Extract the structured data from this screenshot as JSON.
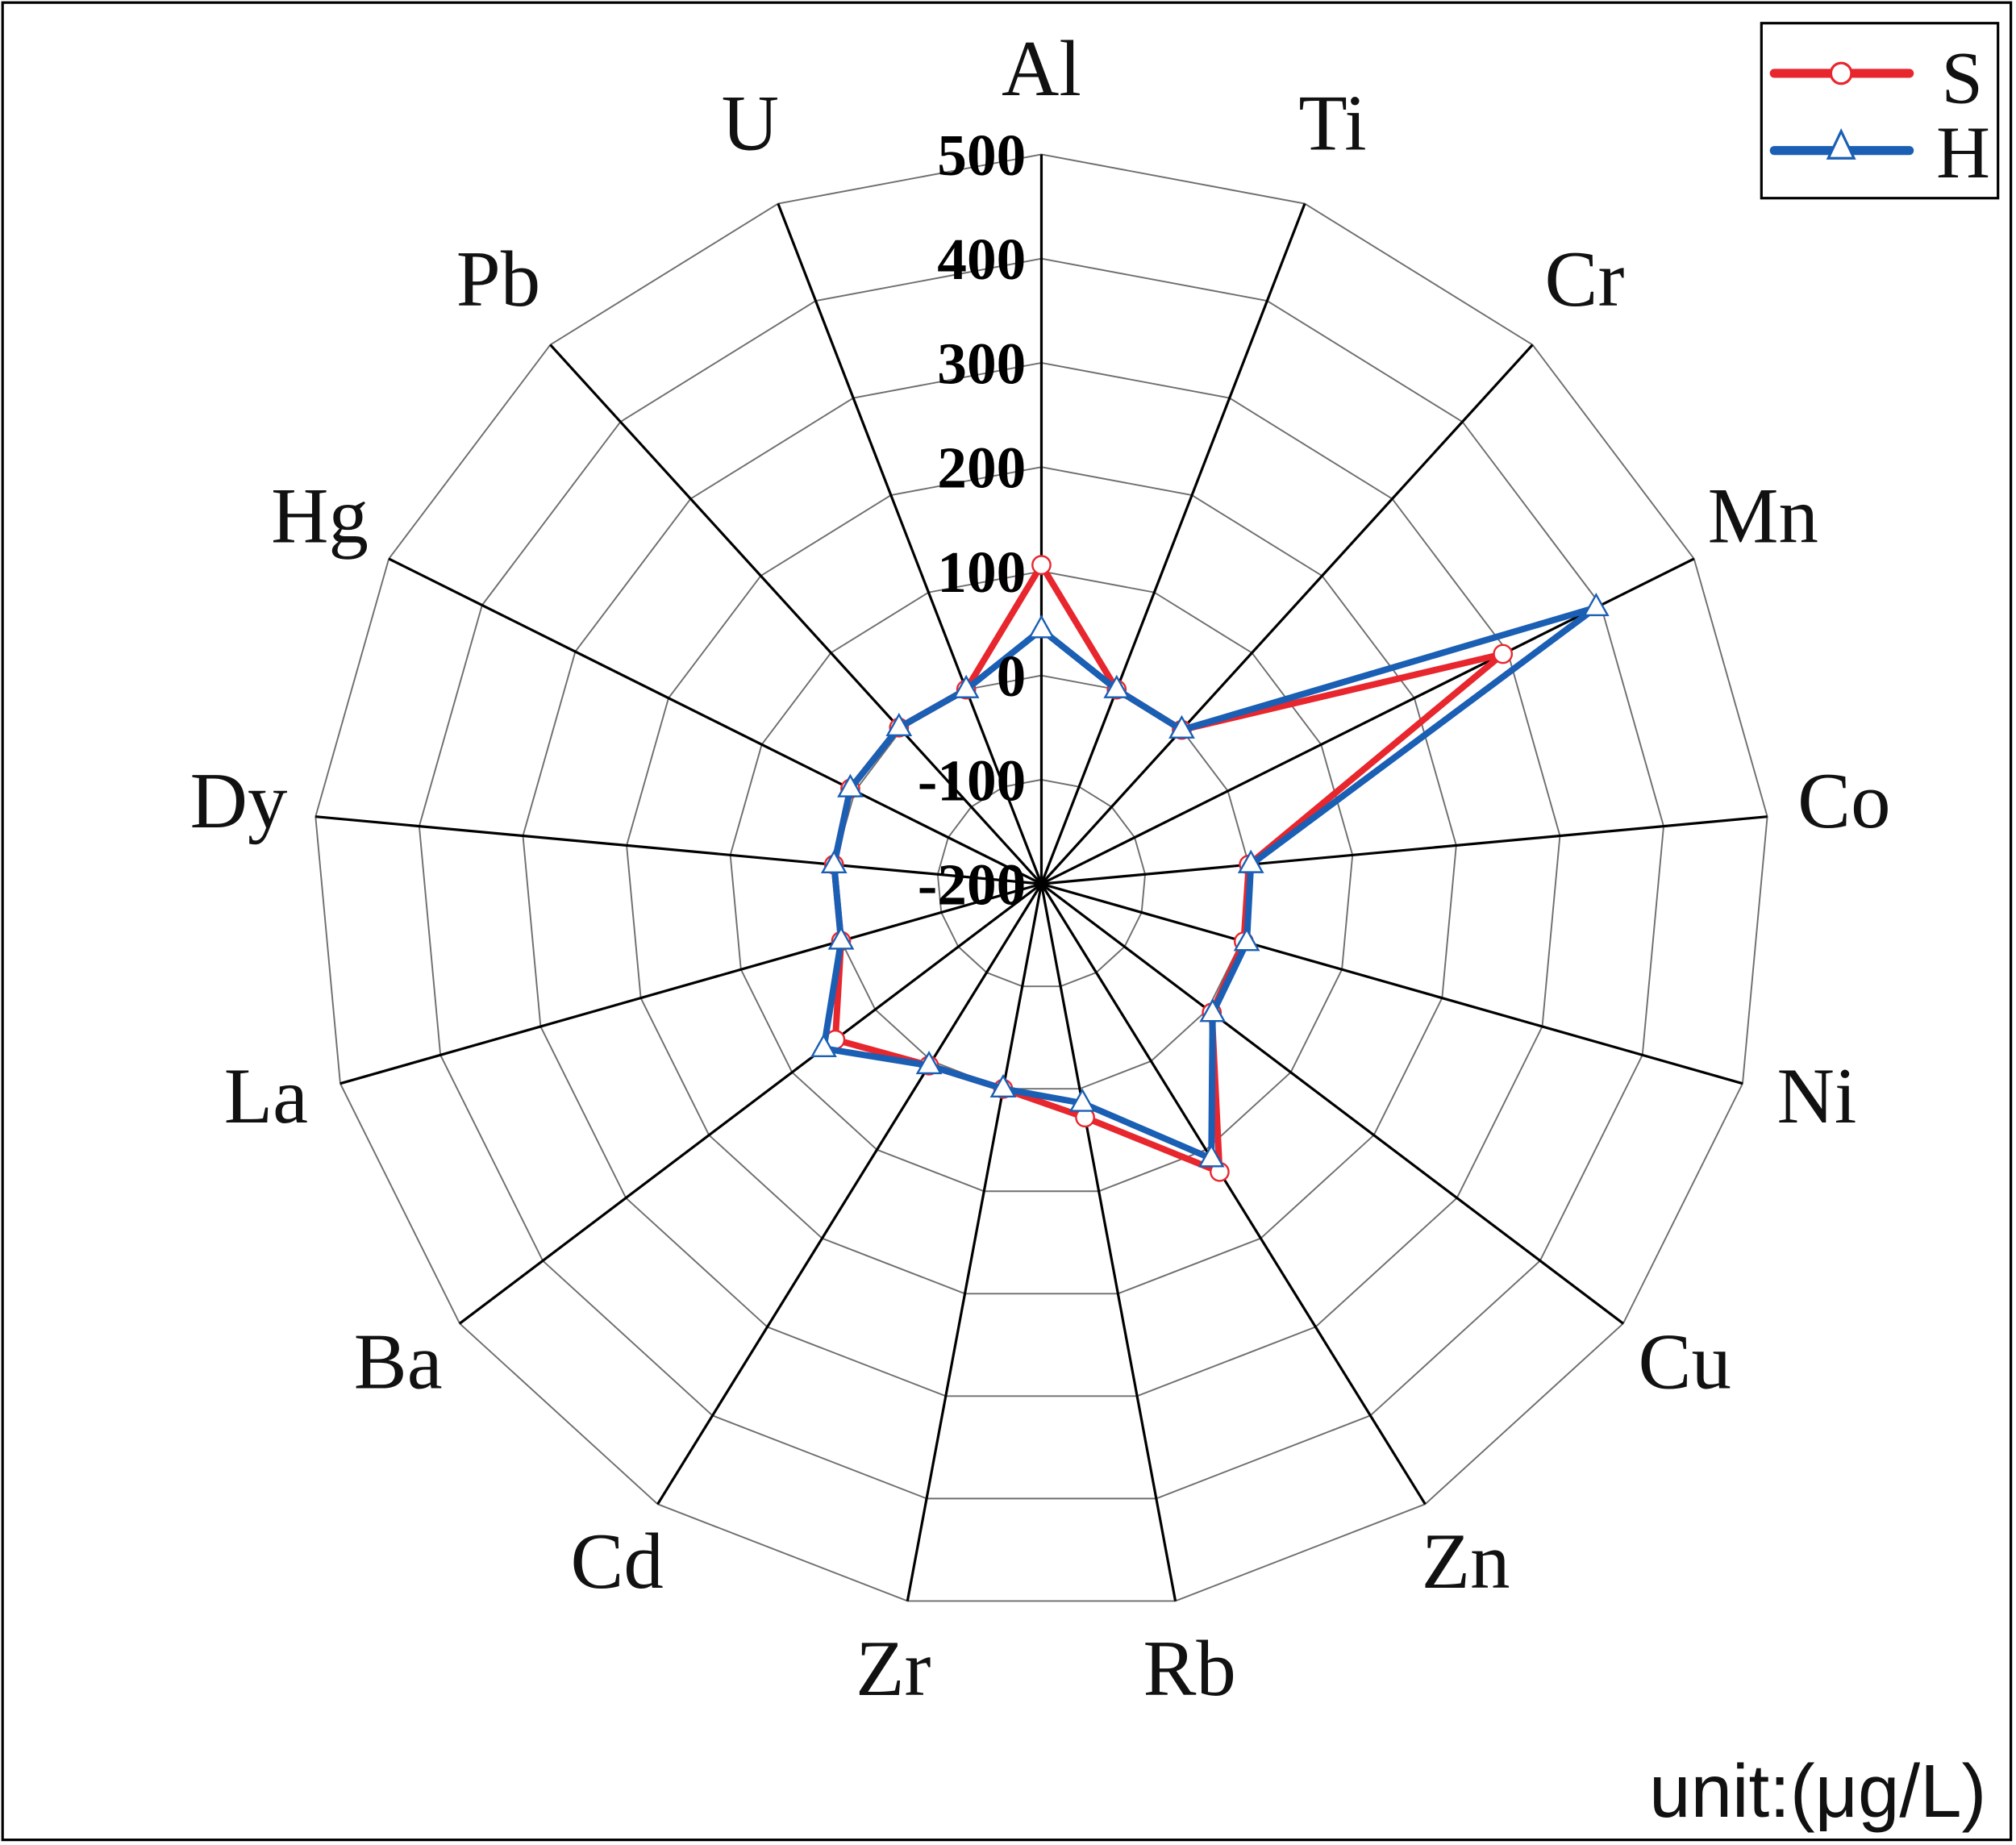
{
  "chart_data": {
    "type": "radar",
    "title": "",
    "unit_label": "unit:(μg/L)",
    "categories": [
      "Al",
      "Ti",
      "Cr",
      "Mn",
      "Co",
      "Ni",
      "Cu",
      "Zn",
      "Rb",
      "Zr",
      "Cd",
      "Ba",
      "La",
      "Dy",
      "Hg",
      "Pb",
      "U"
    ],
    "radial_axis": {
      "min": -200,
      "max": 500,
      "step": 100,
      "tick_labels": [
        "-200",
        "-100",
        "0",
        "100",
        "200",
        "300",
        "400",
        "500"
      ]
    },
    "grid": true,
    "legend_position": "top-right",
    "series": [
      {
        "name": "S",
        "color": "#e8262d",
        "marker": "circle",
        "values": [
          106,
          0,
          0,
          295,
          0,
          2,
          5,
          125,
          28,
          0,
          5,
          48,
          0,
          0,
          5,
          3,
          0
        ]
      },
      {
        "name": "H",
        "color": "#1a5fb4",
        "marker": "triangle",
        "values": [
          44,
          0,
          0,
          395,
          2,
          5,
          6,
          110,
          14,
          0,
          5,
          62,
          0,
          0,
          5,
          3,
          0
        ]
      }
    ]
  },
  "legend": {
    "items": [
      {
        "label": "S",
        "color": "#e8262d",
        "marker": "circle"
      },
      {
        "label": "H",
        "color": "#1a5fb4",
        "marker": "triangle"
      }
    ]
  },
  "unit": {
    "label": "unit:(μg/L)"
  }
}
